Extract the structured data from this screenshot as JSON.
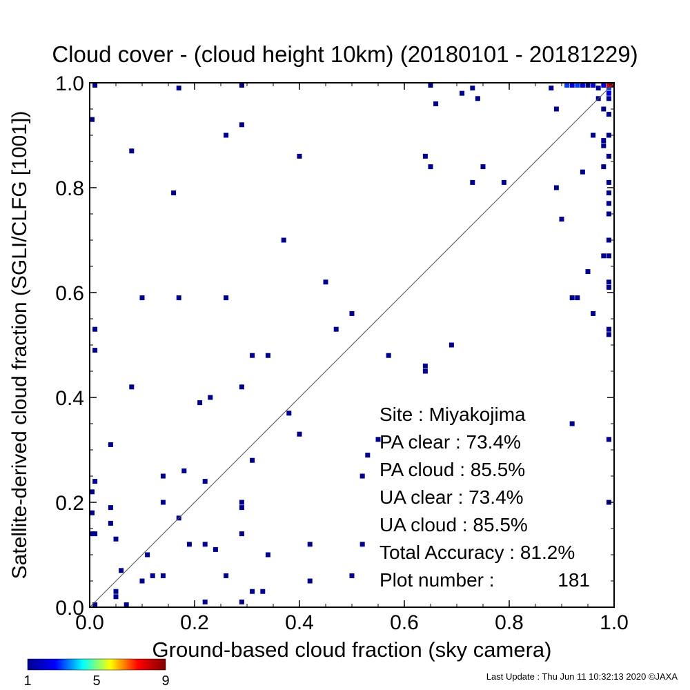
{
  "chart_data": {
    "type": "scatter",
    "title": "Cloud cover - (cloud height 10km)  (20180101 - 20181229)",
    "xlabel": "Ground-based cloud fraction (sky camera)",
    "ylabel": "Satellite-derived cloud fraction (SGLI/CLFG [1001])",
    "xlim": [
      0,
      1
    ],
    "ylim": [
      0,
      1
    ],
    "x_ticks": [
      "0.0",
      "0.2",
      "0.4",
      "0.6",
      "0.8",
      "1.0"
    ],
    "y_ticks": [
      "0.0",
      "0.2",
      "0.4",
      "0.6",
      "0.8",
      "1.0"
    ],
    "grid": false,
    "diagonal_line": true,
    "stats": {
      "site": "Site : Miyakojima",
      "pa_clear": "PA clear :  73.4%",
      "pa_cloud": "PA cloud :  85.5%",
      "ua_clear": "UA clear :  73.4%",
      "ua_cloud": "UA cloud :  85.5%",
      "total_accuracy": "Total Accuracy :  81.2%",
      "plot_number_label": "Plot number :",
      "plot_number_value": "181"
    },
    "colorbar": {
      "min": 1,
      "max": 9,
      "tick_labels": [
        "1",
        "5",
        "9"
      ],
      "colors": [
        "#00008f",
        "#0000ff",
        "#00ffff",
        "#ffff00",
        "#ff0000",
        "#800000"
      ]
    },
    "points": [
      [
        0.01,
        1.0,
        1
      ],
      [
        0.29,
        1.0,
        1
      ],
      [
        0.17,
        0.99,
        1
      ],
      [
        0.0,
        0.93,
        1
      ],
      [
        0.08,
        0.87,
        1
      ],
      [
        0.26,
        0.9,
        1
      ],
      [
        0.29,
        0.92,
        1
      ],
      [
        0.4,
        0.86,
        1
      ],
      [
        0.16,
        0.79,
        1
      ],
      [
        0.37,
        0.7,
        1
      ],
      [
        0.45,
        0.62,
        1
      ],
      [
        0.1,
        0.59,
        1
      ],
      [
        0.17,
        0.59,
        1
      ],
      [
        0.26,
        0.59,
        1
      ],
      [
        0.5,
        0.56,
        1
      ],
      [
        0.47,
        0.53,
        1
      ],
      [
        0.01,
        0.53,
        1
      ],
      [
        0.01,
        0.49,
        1
      ],
      [
        0.31,
        0.48,
        1
      ],
      [
        0.34,
        0.48,
        1
      ],
      [
        0.57,
        0.48,
        1
      ],
      [
        0.64,
        0.46,
        1
      ],
      [
        0.64,
        0.45,
        1
      ],
      [
        0.69,
        0.5,
        1
      ],
      [
        0.08,
        0.42,
        1
      ],
      [
        0.29,
        0.42,
        1
      ],
      [
        0.21,
        0.39,
        1
      ],
      [
        0.23,
        0.4,
        1
      ],
      [
        0.38,
        0.37,
        1
      ],
      [
        0.4,
        0.33,
        1
      ],
      [
        0.04,
        0.31,
        1
      ],
      [
        0.55,
        0.32,
        1
      ],
      [
        0.53,
        0.29,
        1
      ],
      [
        0.31,
        0.28,
        1
      ],
      [
        0.18,
        0.26,
        1
      ],
      [
        0.14,
        0.25,
        1
      ],
      [
        0.01,
        0.24,
        1
      ],
      [
        0.22,
        0.24,
        1
      ],
      [
        0.52,
        0.25,
        1
      ],
      [
        0.0,
        0.22,
        1
      ],
      [
        0.14,
        0.2,
        1
      ],
      [
        0.04,
        0.19,
        1
      ],
      [
        0.29,
        0.2,
        1
      ],
      [
        0.29,
        0.19,
        1
      ],
      [
        0.0,
        0.18,
        1
      ],
      [
        0.17,
        0.17,
        1
      ],
      [
        0.04,
        0.16,
        1
      ],
      [
        0.0,
        0.14,
        1
      ],
      [
        0.01,
        0.14,
        1
      ],
      [
        0.29,
        0.14,
        1
      ],
      [
        0.05,
        0.13,
        1
      ],
      [
        0.19,
        0.12,
        1
      ],
      [
        0.22,
        0.12,
        1
      ],
      [
        0.24,
        0.11,
        1
      ],
      [
        0.42,
        0.12,
        1
      ],
      [
        0.52,
        0.12,
        1
      ],
      [
        0.11,
        0.1,
        1
      ],
      [
        0.34,
        0.1,
        1
      ],
      [
        0.06,
        0.07,
        1
      ],
      [
        0.12,
        0.06,
        1
      ],
      [
        0.14,
        0.06,
        1
      ],
      [
        0.26,
        0.06,
        1
      ],
      [
        0.5,
        0.06,
        1
      ],
      [
        0.1,
        0.05,
        1
      ],
      [
        0.42,
        0.05,
        1
      ],
      [
        0.05,
        0.03,
        1
      ],
      [
        0.05,
        0.02,
        1
      ],
      [
        0.31,
        0.03,
        1
      ],
      [
        0.33,
        0.03,
        1
      ],
      [
        0.22,
        0.01,
        1
      ],
      [
        0.29,
        0.01,
        1
      ],
      [
        0.01,
        0.0,
        1
      ],
      [
        0.07,
        0.0,
        1
      ],
      [
        0.65,
        1.0,
        1
      ],
      [
        0.73,
        0.99,
        1
      ],
      [
        0.71,
        0.98,
        1
      ],
      [
        0.74,
        0.97,
        1
      ],
      [
        0.66,
        0.96,
        1
      ],
      [
        0.64,
        0.86,
        1
      ],
      [
        0.65,
        0.84,
        1
      ],
      [
        0.75,
        0.84,
        1
      ],
      [
        0.73,
        0.81,
        1
      ],
      [
        0.79,
        0.81,
        1
      ],
      [
        0.88,
        0.99,
        1
      ],
      [
        0.89,
        0.95,
        1
      ],
      [
        0.89,
        0.8,
        1
      ],
      [
        0.9,
        0.74,
        1
      ],
      [
        0.94,
        0.83,
        1
      ],
      [
        0.96,
        0.9,
        1
      ],
      [
        0.95,
        0.64,
        1
      ],
      [
        0.92,
        0.59,
        1
      ],
      [
        0.93,
        0.59,
        1
      ],
      [
        0.96,
        0.56,
        1
      ],
      [
        0.92,
        0.35,
        1
      ],
      [
        0.98,
        0.67,
        1
      ],
      [
        0.99,
        0.67,
        1
      ],
      [
        0.98,
        0.88,
        1
      ],
      [
        0.98,
        0.84,
        1
      ],
      [
        0.99,
        0.86,
        1
      ],
      [
        0.99,
        0.75,
        1
      ],
      [
        0.99,
        0.7,
        1
      ],
      [
        0.99,
        0.62,
        1
      ],
      [
        0.99,
        0.61,
        1
      ],
      [
        0.99,
        0.53,
        1
      ],
      [
        0.99,
        0.52,
        1
      ],
      [
        0.99,
        0.32,
        1
      ],
      [
        0.99,
        0.2,
        1
      ],
      [
        0.99,
        0.94,
        1
      ],
      [
        0.99,
        0.9,
        1
      ],
      [
        0.99,
        0.81,
        1
      ],
      [
        0.99,
        0.79,
        1
      ],
      [
        0.99,
        0.77,
        1
      ],
      [
        0.98,
        0.89,
        1
      ],
      [
        0.98,
        0.95,
        1
      ],
      [
        0.97,
        0.97,
        1
      ],
      [
        0.99,
        0.97,
        1
      ],
      [
        0.97,
        0.99,
        1
      ],
      [
        0.91,
        1.0,
        3
      ],
      [
        0.92,
        1.0,
        2
      ],
      [
        0.93,
        1.0,
        3
      ],
      [
        0.94,
        1.0,
        2
      ],
      [
        0.95,
        1.0,
        1
      ],
      [
        0.96,
        1.0,
        2
      ],
      [
        0.98,
        1.0,
        2
      ],
      [
        0.99,
        0.98,
        2
      ],
      [
        0.99,
        0.99,
        3
      ],
      [
        0.99,
        1.0,
        8
      ],
      [
        1.0,
        1.0,
        9
      ]
    ],
    "point_count": 181
  },
  "footer": {
    "last_update": "Last Update : Thu Jun 11 10:32:13 2020  ©JAXA"
  }
}
